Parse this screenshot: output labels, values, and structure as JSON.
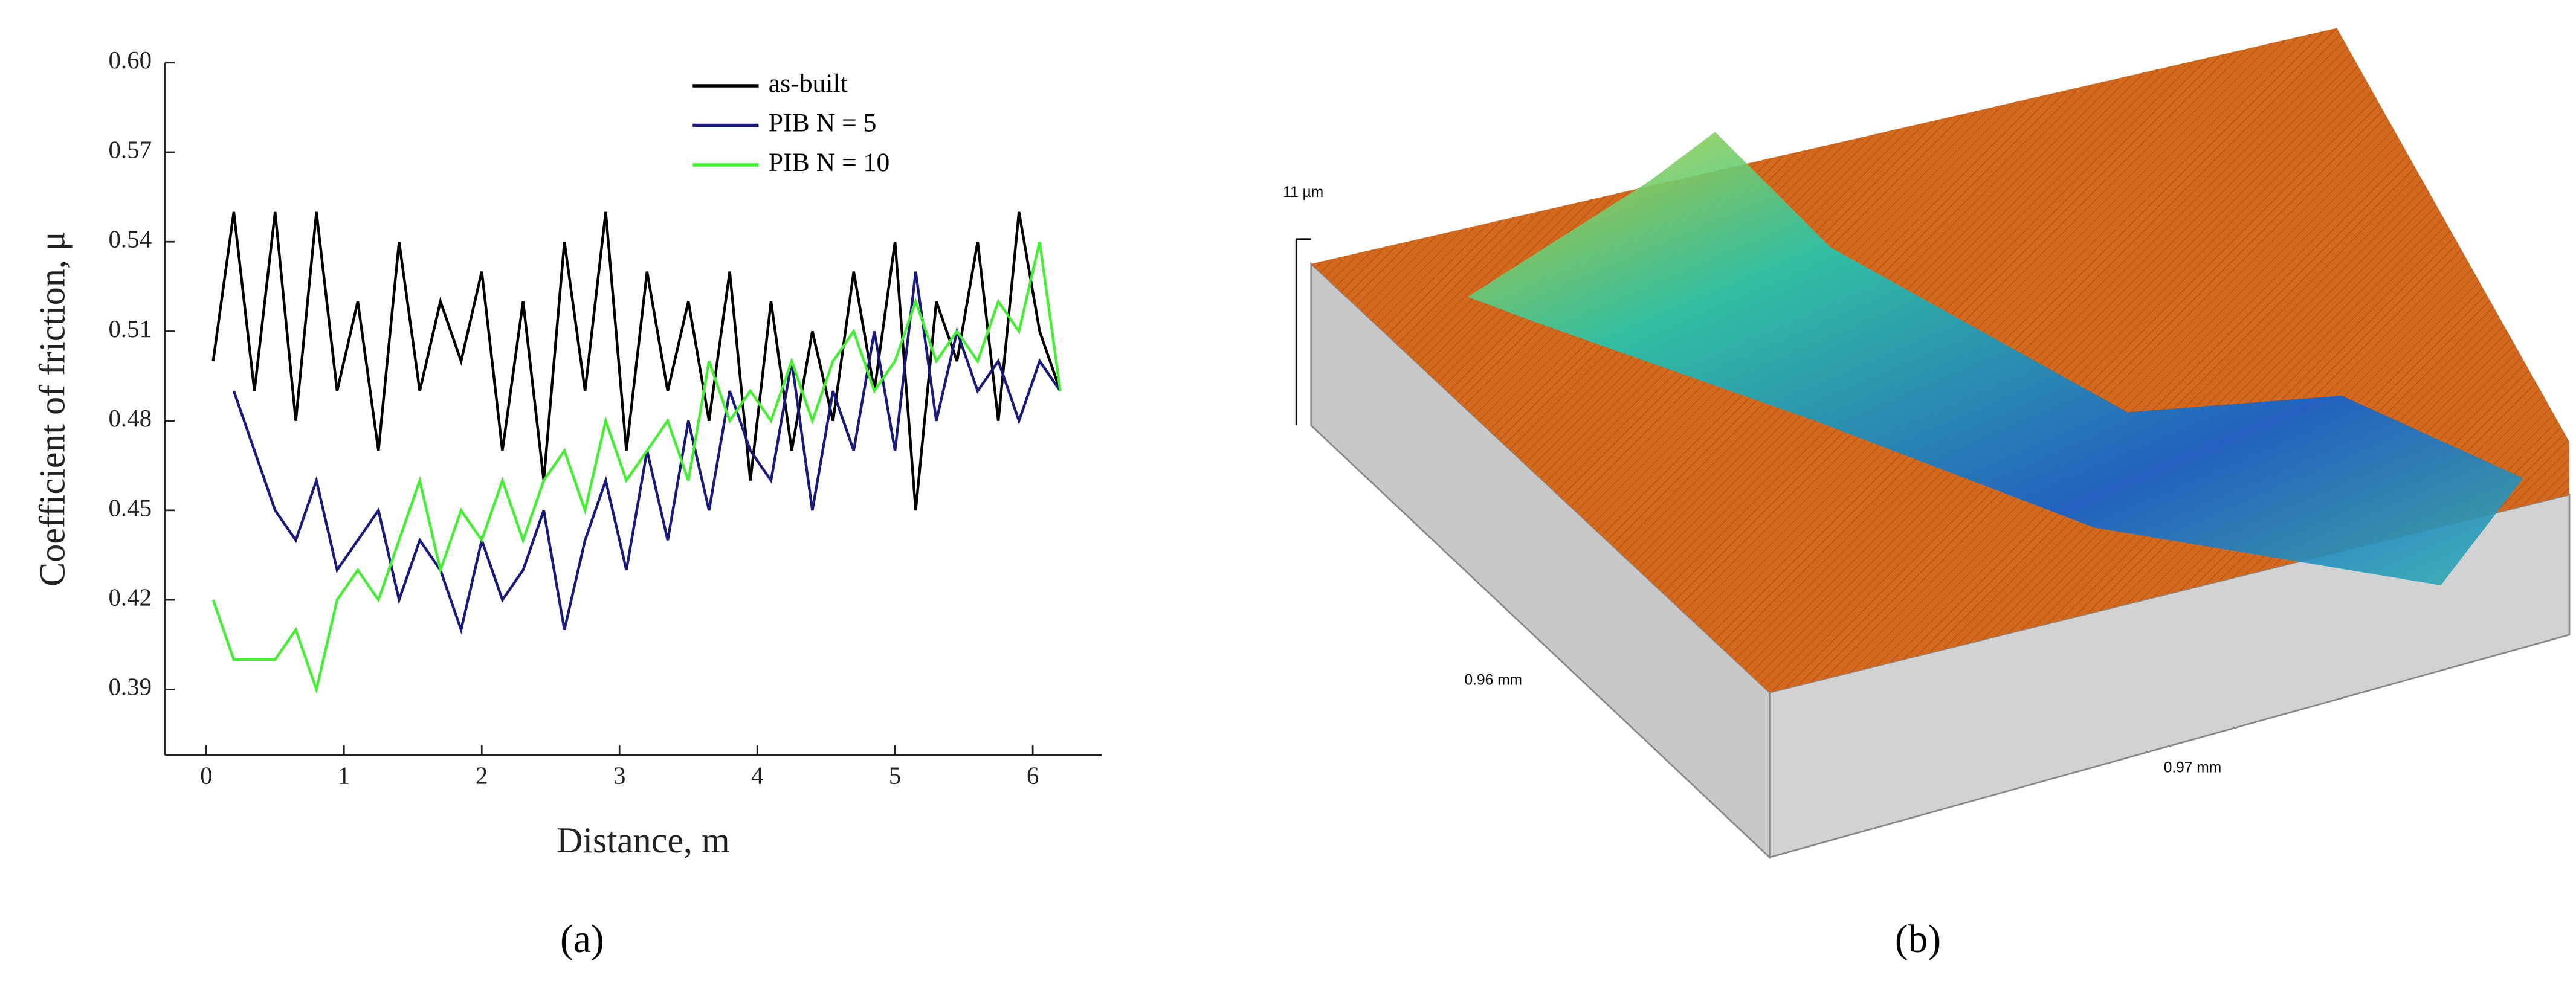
{
  "chart_data": {
    "type": "line",
    "xlabel": "Distance, m",
    "ylabel": "Coefficient of friction, μ",
    "x": [
      0.05,
      0.2,
      0.35,
      0.5,
      0.65,
      0.8,
      0.95,
      1.1,
      1.25,
      1.4,
      1.55,
      1.7,
      1.85,
      2,
      2.15,
      2.3,
      2.45,
      2.6,
      2.75,
      2.9,
      3.05,
      3.2,
      3.35,
      3.5,
      3.65,
      3.8,
      3.95,
      4.1,
      4.25,
      4.4,
      4.55,
      4.7,
      4.85,
      5,
      5.15,
      5.3,
      5.45,
      5.6,
      5.75,
      5.9,
      6.05,
      6.2
    ],
    "series": [
      {
        "name": "as-built",
        "color": "#000000",
        "values": [
          0.5,
          0.55,
          0.49,
          0.55,
          0.48,
          0.55,
          0.49,
          0.52,
          0.47,
          0.54,
          0.49,
          0.52,
          0.5,
          0.53,
          0.47,
          0.52,
          0.46,
          0.54,
          0.49,
          0.55,
          0.47,
          0.53,
          0.49,
          0.52,
          0.48,
          0.53,
          0.46,
          0.52,
          0.47,
          0.51,
          0.48,
          0.53,
          0.49,
          0.54,
          0.45,
          0.52,
          0.5,
          0.54,
          0.48,
          0.55,
          0.51,
          0.49
        ]
      },
      {
        "name": "PIB N = 5",
        "color": "#1a1a7a",
        "values": [
          null,
          0.49,
          0.47,
          0.45,
          0.44,
          0.46,
          0.43,
          0.44,
          0.45,
          0.42,
          0.44,
          0.43,
          0.41,
          0.44,
          0.42,
          0.43,
          0.45,
          0.41,
          0.44,
          0.46,
          0.43,
          0.47,
          0.44,
          0.48,
          0.45,
          0.49,
          0.47,
          0.46,
          0.5,
          0.45,
          0.49,
          0.47,
          0.51,
          0.47,
          0.53,
          0.48,
          0.51,
          0.49,
          0.5,
          0.48,
          0.5,
          0.49
        ]
      },
      {
        "name": "PIB N = 10",
        "color": "#44ee33",
        "values": [
          0.42,
          0.4,
          0.4,
          0.4,
          0.41,
          0.39,
          0.42,
          0.43,
          0.42,
          0.44,
          0.46,
          0.43,
          0.45,
          0.44,
          0.46,
          0.44,
          0.46,
          0.47,
          0.45,
          0.48,
          0.46,
          0.47,
          0.48,
          0.46,
          0.5,
          0.48,
          0.49,
          0.48,
          0.5,
          0.48,
          0.5,
          0.51,
          0.49,
          0.5,
          0.52,
          0.5,
          0.51,
          0.5,
          0.52,
          0.51,
          0.54,
          0.49
        ]
      }
    ],
    "xlim": [
      -0.3,
      6.5
    ],
    "xticks": [
      0,
      1,
      2,
      3,
      4,
      5,
      6
    ],
    "ylim": [
      0.368,
      0.6
    ],
    "yticks": [
      {
        "value": 0.6,
        "label": "0.60"
      },
      0.57,
      0.54,
      0.51,
      0.48,
      0.45,
      0.42,
      0.39
    ],
    "legend": "upper center"
  },
  "panel_b": {
    "height_label": "11 µm",
    "y_length_label": "0.96 mm",
    "x_length_label": "0.97 mm"
  },
  "captions": [
    "(a)",
    "(b)"
  ]
}
